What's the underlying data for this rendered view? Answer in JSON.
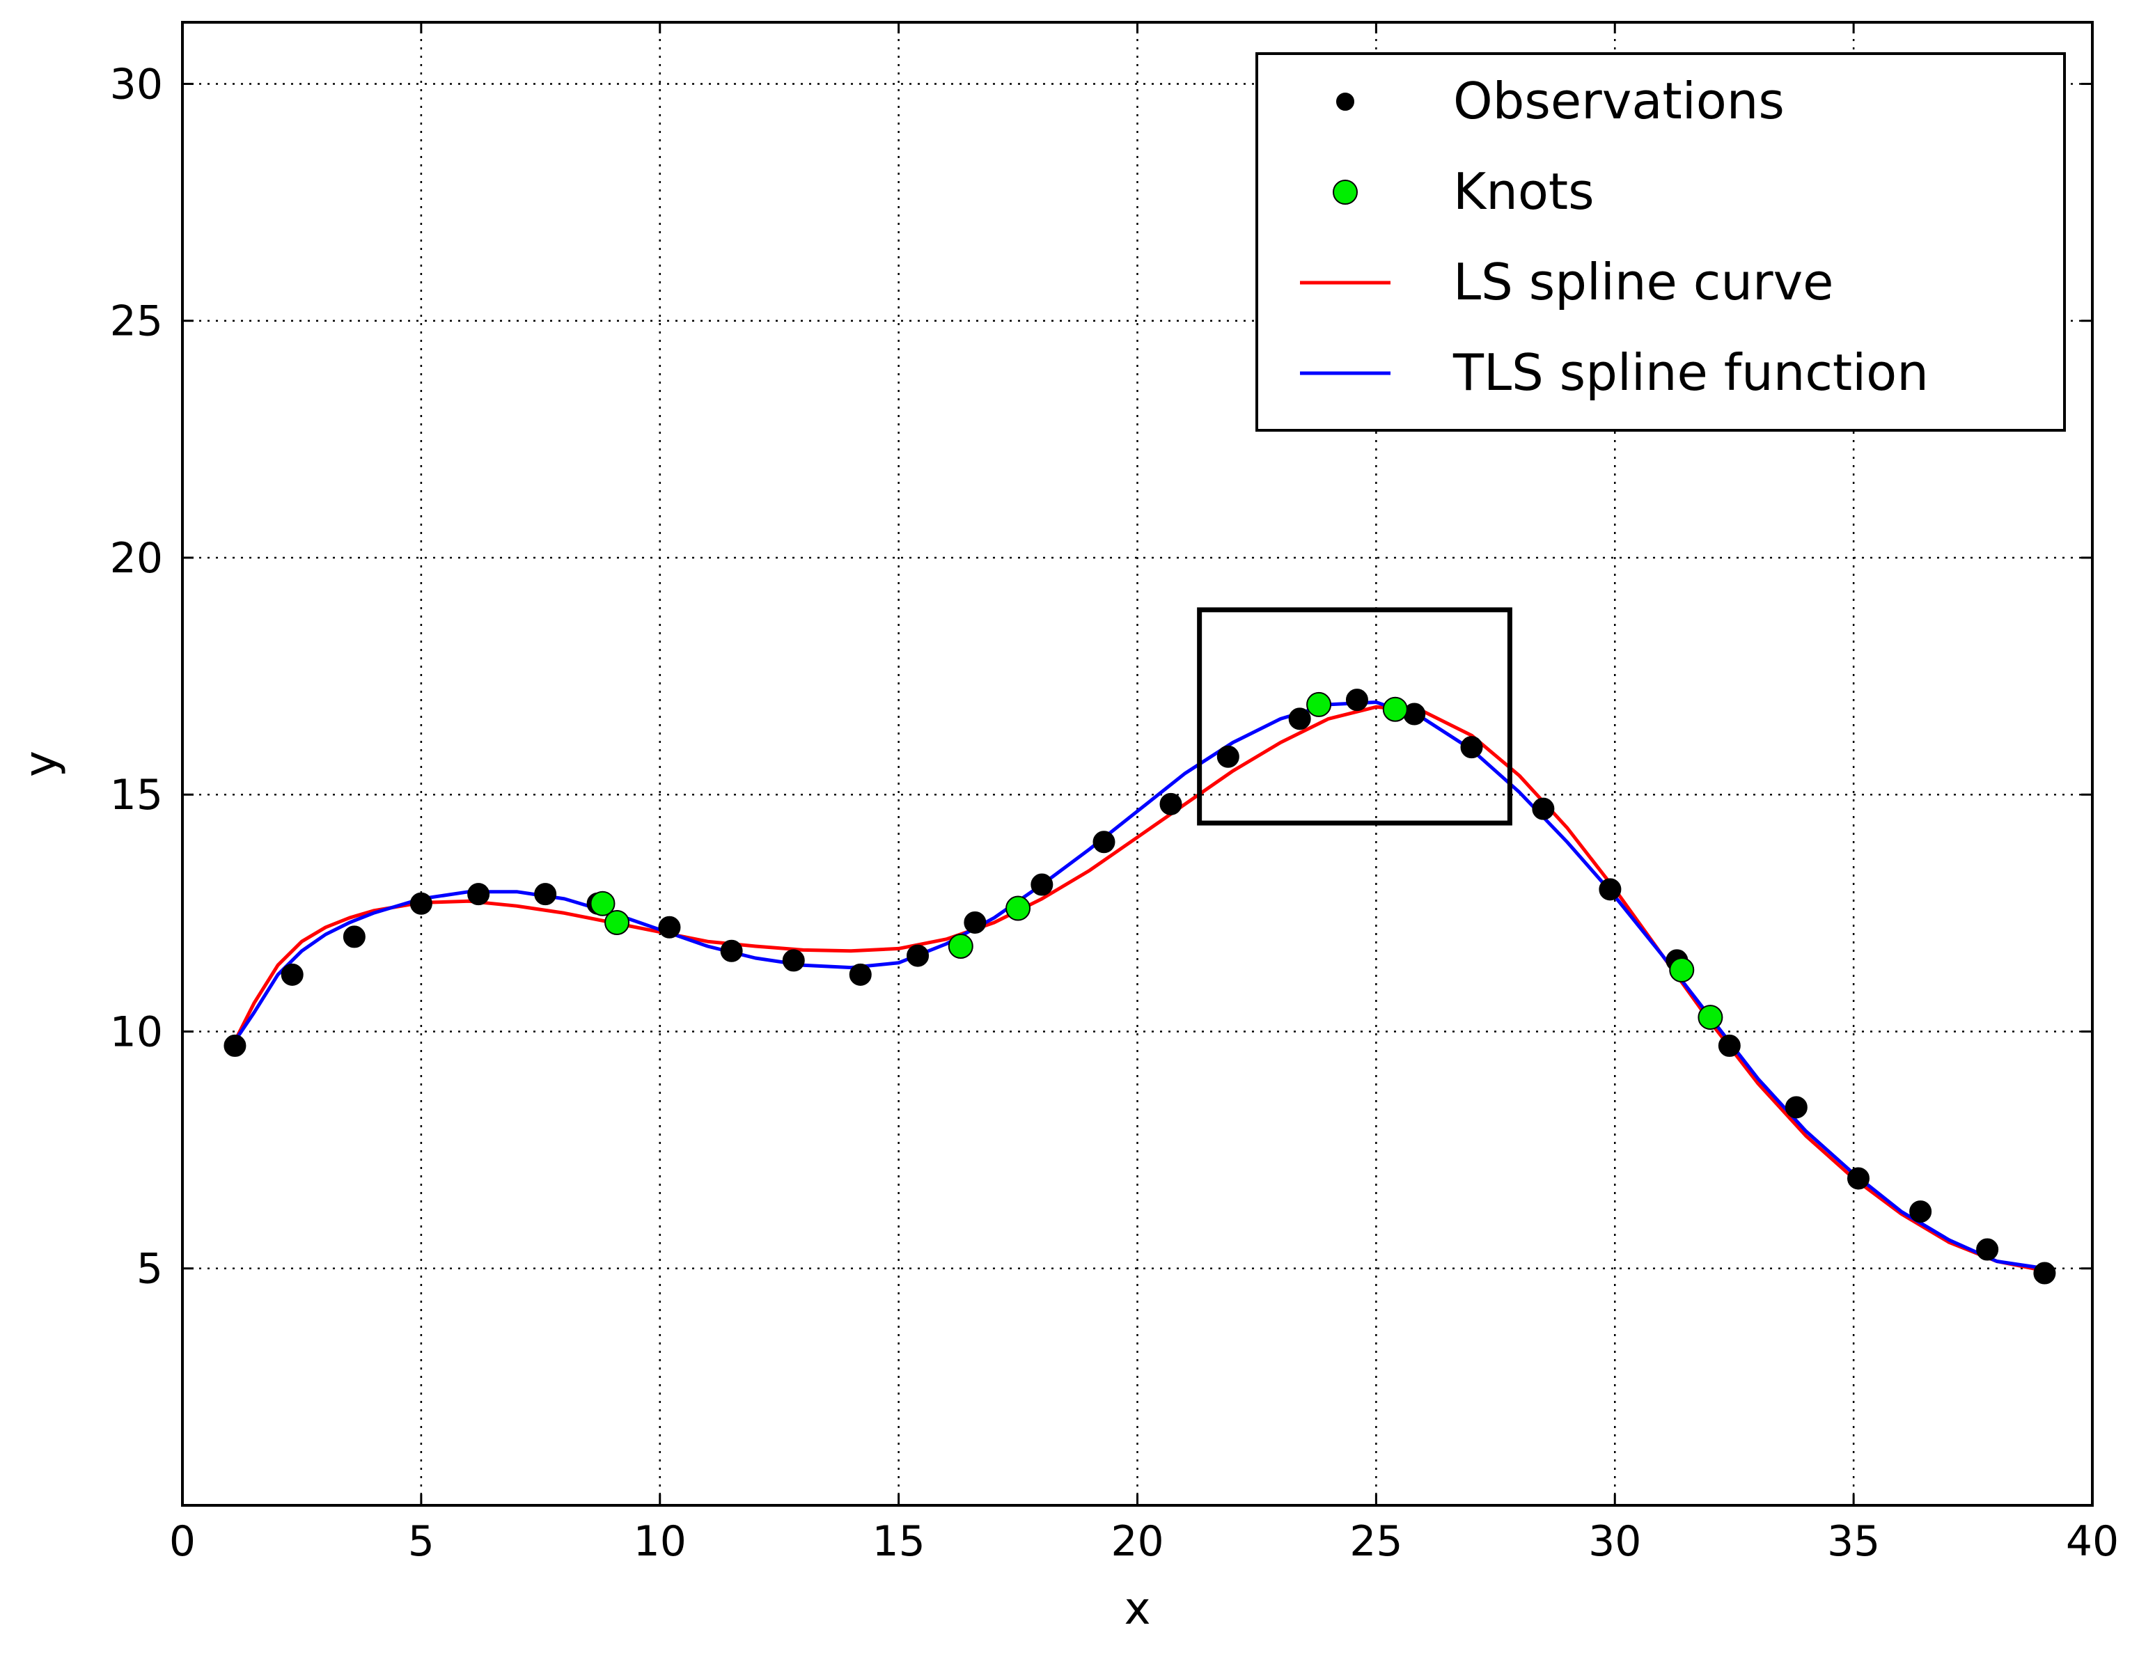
{
  "chart_data": {
    "type": "scatter",
    "title": "",
    "xlabel": "x",
    "ylabel": "y",
    "xlim": [
      0,
      40
    ],
    "ylim": [
      0,
      31.3
    ],
    "xticks": [
      0,
      5,
      10,
      15,
      20,
      25,
      30,
      35,
      40
    ],
    "yticks": [
      5,
      10,
      15,
      20,
      25,
      30
    ],
    "grid": true,
    "legend_position": "top-right",
    "legend": [
      {
        "label": "Observations",
        "kind": "marker",
        "color": "#000000"
      },
      {
        "label": "Knots",
        "kind": "marker",
        "color": "#00ee00"
      },
      {
        "label": "LS spline curve",
        "kind": "line",
        "color": "#ff0000"
      },
      {
        "label": "TLS spline function",
        "kind": "line",
        "color": "#0000ff"
      }
    ],
    "series": [
      {
        "name": "Observations",
        "kind": "scatter",
        "color": "#000000",
        "x": [
          1.1,
          2.3,
          3.6,
          5.0,
          6.2,
          7.6,
          8.7,
          10.2,
          11.5,
          12.8,
          14.2,
          15.4,
          16.6,
          18.0,
          19.3,
          20.7,
          21.9,
          23.4,
          24.6,
          25.8,
          27.0,
          28.5,
          29.9,
          31.3,
          32.4,
          33.8,
          35.1,
          36.4,
          37.8,
          39.0
        ],
        "y": [
          9.7,
          11.2,
          12.0,
          12.7,
          12.9,
          12.9,
          12.7,
          12.2,
          11.7,
          11.5,
          11.2,
          11.6,
          12.3,
          13.1,
          14.0,
          14.8,
          15.8,
          16.6,
          17.0,
          16.7,
          16.0,
          14.7,
          13.0,
          11.5,
          9.7,
          8.4,
          6.9,
          6.2,
          5.4,
          4.9
        ]
      },
      {
        "name": "Knots",
        "kind": "scatter",
        "color": "#00ee00",
        "x": [
          8.8,
          9.1,
          16.3,
          17.5,
          23.8,
          25.4,
          31.4,
          32.0
        ],
        "y": [
          12.7,
          12.3,
          11.8,
          12.6,
          16.9,
          16.8,
          11.3,
          10.3
        ]
      },
      {
        "name": "LS spline curve",
        "kind": "line",
        "color": "#ff0000",
        "x": [
          1.1,
          1.5,
          2.0,
          2.5,
          3.0,
          3.5,
          4.0,
          5.0,
          6.0,
          7.0,
          8.0,
          9.0,
          10.0,
          11.0,
          12.0,
          13.0,
          14.0,
          15.0,
          16.0,
          17.0,
          18.0,
          19.0,
          20.0,
          21.0,
          22.0,
          23.0,
          24.0,
          25.0,
          26.0,
          27.0,
          28.0,
          29.0,
          30.0,
          31.0,
          32.0,
          33.0,
          34.0,
          35.0,
          36.0,
          37.0,
          38.0,
          39.0
        ],
        "y": [
          9.8,
          10.6,
          11.4,
          11.9,
          12.2,
          12.4,
          12.55,
          12.72,
          12.75,
          12.65,
          12.5,
          12.3,
          12.1,
          11.9,
          11.8,
          11.72,
          11.7,
          11.75,
          11.95,
          12.3,
          12.8,
          13.4,
          14.1,
          14.8,
          15.5,
          16.1,
          16.6,
          16.85,
          16.75,
          16.25,
          15.4,
          14.3,
          13.0,
          11.6,
          10.2,
          8.9,
          7.8,
          6.9,
          6.15,
          5.55,
          5.15,
          4.95
        ]
      },
      {
        "name": "TLS spline function",
        "kind": "line",
        "color": "#0000ff",
        "x": [
          1.1,
          1.5,
          2.0,
          2.5,
          3.0,
          3.5,
          4.0,
          5.0,
          6.0,
          7.0,
          8.0,
          9.0,
          10.0,
          11.0,
          12.0,
          13.0,
          14.0,
          15.0,
          16.0,
          17.0,
          18.0,
          19.0,
          20.0,
          21.0,
          22.0,
          23.0,
          24.0,
          25.0,
          26.0,
          27.0,
          28.0,
          29.0,
          30.0,
          31.0,
          32.0,
          33.0,
          34.0,
          35.0,
          36.0,
          37.0,
          38.0,
          39.0
        ],
        "y": [
          9.8,
          10.4,
          11.2,
          11.7,
          12.05,
          12.3,
          12.5,
          12.8,
          12.95,
          12.95,
          12.8,
          12.5,
          12.15,
          11.8,
          11.55,
          11.4,
          11.35,
          11.45,
          11.85,
          12.4,
          13.1,
          13.85,
          14.65,
          15.45,
          16.1,
          16.6,
          16.9,
          16.95,
          16.6,
          15.95,
          15.05,
          14.0,
          12.85,
          11.6,
          10.3,
          9.0,
          7.9,
          7.0,
          6.2,
          5.6,
          5.15,
          5.0
        ]
      }
    ],
    "annotations": [
      {
        "type": "rectangle",
        "label": "highlight-box",
        "x0": 21.3,
        "x1": 27.8,
        "y0": 14.4,
        "y1": 18.9,
        "color": "#000000"
      }
    ]
  }
}
